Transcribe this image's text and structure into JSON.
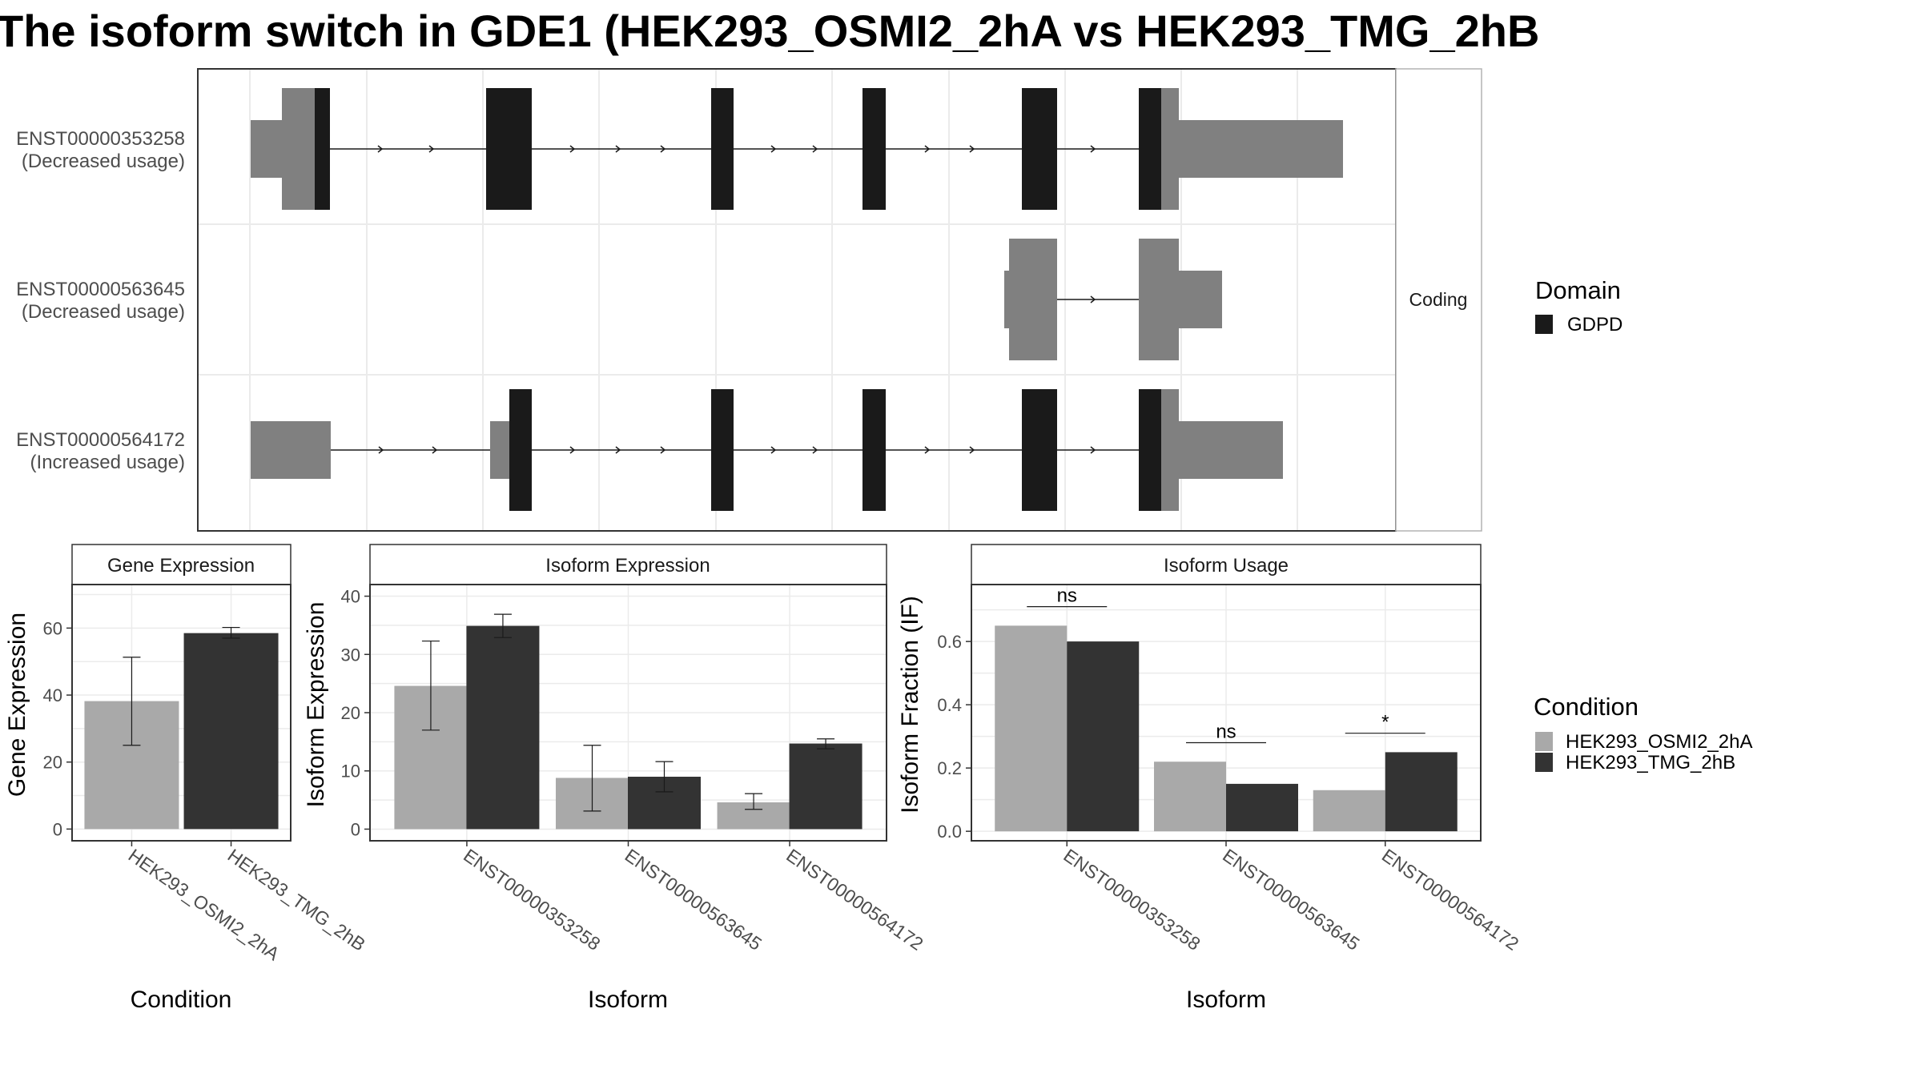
{
  "title": "The isoform switch in GDE1 (HEK293_OSMI2_2hA vs HEK293_TMG_2hB",
  "colors": {
    "exon_utr": "#808080",
    "domain_gdpd": "#1a1a1a",
    "cond_a": "#a9a9a9",
    "cond_b": "#333333",
    "grid": "#ebebeb",
    "panel_border": "#333333",
    "strip_border": "#b3b3b3"
  },
  "structure": {
    "facet_label": "Coding",
    "legend_title": "Domain",
    "legend_items": [
      "GDPD"
    ],
    "isoforms": [
      {
        "id": "ENST00000353258",
        "usage": "(Decreased usage)"
      },
      {
        "id": "ENST00000563645",
        "usage": "(Decreased usage)"
      },
      {
        "id": "ENST00000564172",
        "usage": "(Increased usage)"
      }
    ]
  },
  "chart_data": [
    {
      "type": "bar",
      "panel": "Gene Expression",
      "xlabel": "Condition",
      "ylabel": "Gene Expression",
      "categories": [
        "HEK293_OSMI2_2hA",
        "HEK293_TMG_2hB"
      ],
      "values": [
        38.2,
        58.5
      ],
      "errors": [
        [
          25.0,
          51.3
        ],
        [
          57.0,
          60.2
        ]
      ],
      "yticks": [
        0,
        20,
        40,
        60
      ],
      "ylim": [
        -3.5,
        73
      ]
    },
    {
      "type": "bar",
      "panel": "Isoform Expression",
      "xlabel": "Isoform",
      "ylabel": "Isoform Expression",
      "categories": [
        "ENST00000353258",
        "ENST00000563645",
        "ENST00000564172"
      ],
      "series": [
        {
          "name": "HEK293_OSMI2_2hA",
          "values": [
            24.6,
            8.8,
            4.6
          ],
          "errors": [
            [
              17.0,
              32.3
            ],
            [
              3.1,
              14.4
            ],
            [
              3.4,
              6.1
            ]
          ]
        },
        {
          "name": "HEK293_TMG_2hB",
          "values": [
            34.9,
            9.0,
            14.7
          ],
          "errors": [
            [
              32.9,
              36.9
            ],
            [
              6.4,
              11.6
            ],
            [
              13.8,
              15.5
            ]
          ]
        }
      ],
      "yticks": [
        0,
        10,
        20,
        30,
        40
      ],
      "ylim": [
        -2,
        42
      ]
    },
    {
      "type": "bar",
      "panel": "Isoform Usage",
      "xlabel": "Isoform",
      "ylabel": "Isoform Fraction (IF)",
      "categories": [
        "ENST00000353258",
        "ENST00000563645",
        "ENST00000564172"
      ],
      "series": [
        {
          "name": "HEK293_OSMI2_2hA",
          "values": [
            0.65,
            0.22,
            0.13
          ]
        },
        {
          "name": "HEK293_TMG_2hB",
          "values": [
            0.6,
            0.15,
            0.25
          ]
        }
      ],
      "significance": [
        "ns",
        "ns",
        "*"
      ],
      "yticks": [
        "0.0",
        "0.2",
        "0.4",
        "0.6"
      ],
      "ylim": [
        -0.03,
        0.78
      ]
    }
  ],
  "condition_legend": {
    "title": "Condition",
    "items": [
      "HEK293_OSMI2_2hA",
      "HEK293_TMG_2hB"
    ]
  }
}
